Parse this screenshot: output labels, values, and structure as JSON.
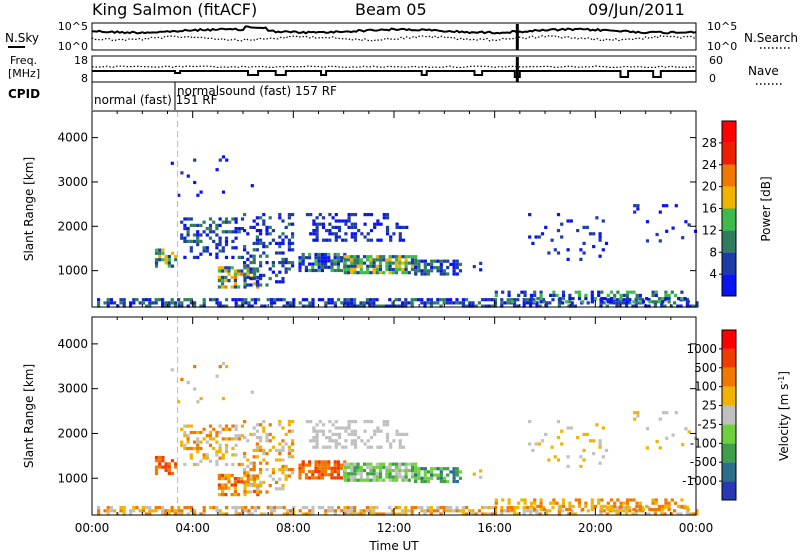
{
  "header": {
    "station": "King Salmon (fitACF)",
    "beam": "Beam 05",
    "date": "09/Jun/2011"
  },
  "noise_panel": {
    "left_label": "N.Sky",
    "right_label": "N.Search",
    "yticks_left": [
      "10^5",
      "10^0"
    ],
    "yticks_right": [
      "10^5",
      "10^0"
    ]
  },
  "freq_panel": {
    "left_label_line1": "Freq.",
    "left_label_line2": "[MHz]",
    "right_label": "Nave",
    "yticks_left": [
      "18",
      "8"
    ],
    "yticks_right": [
      "60",
      "0"
    ]
  },
  "cpid": {
    "label": "CPID",
    "segments": [
      {
        "text": "normal (fast)  151  RF",
        "start_hour": 0.0,
        "end_hour": 3.4
      },
      {
        "text": "normalsound (fast)  157  RF",
        "start_hour": 3.4,
        "end_hour": 24.0
      }
    ]
  },
  "x_axis": {
    "title": "Time UT",
    "ticks": [
      "00:00",
      "04:00",
      "08:00",
      "12:00",
      "16:00",
      "20:00",
      "00:00"
    ],
    "tick_hours": [
      0,
      4,
      8,
      12,
      16,
      20,
      24
    ]
  },
  "chart_data": [
    {
      "type": "heatmap",
      "name": "power",
      "ylabel": "Slant Range [km]",
      "yticks": [
        1000,
        2000,
        3000,
        4000
      ],
      "ylim": [
        180,
        4600
      ],
      "xlim": [
        0,
        24
      ],
      "colorbar": {
        "title": "Power [dB]",
        "labels": [
          "4",
          "8",
          "12",
          "16",
          "20",
          "24",
          "28"
        ],
        "colors": [
          "#0a14f0",
          "#1e3ca8",
          "#2e7d5c",
          "#3cba4c",
          "#f0b400",
          "#f07800",
          "#f01e00",
          "#ff0000"
        ]
      }
    },
    {
      "type": "heatmap",
      "name": "velocity",
      "ylabel": "Slant Range [km]",
      "yticks": [
        1000,
        2000,
        3000,
        4000
      ],
      "ylim": [
        180,
        4600
      ],
      "xlim": [
        0,
        24
      ],
      "colorbar": {
        "title": "Velocity",
        "units": "[m s",
        "units_sup": "-1",
        "units_end": "]",
        "labels": [
          "1000",
          "500",
          "100",
          "25",
          "-25",
          "-100",
          "-500",
          "-1000"
        ],
        "colors": [
          "#2838b4",
          "#2a6e8a",
          "#3e9e4a",
          "#6ed03c",
          "#c0c0c0",
          "#f0b400",
          "#f07800",
          "#f03c00",
          "#ff0000"
        ]
      }
    }
  ]
}
